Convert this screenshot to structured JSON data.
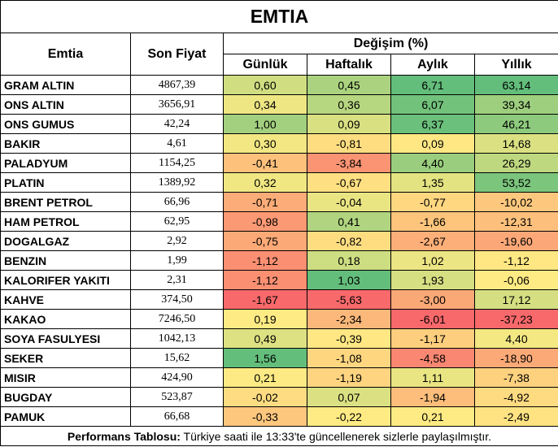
{
  "title": "EMTIA",
  "headers": {
    "commodity": "Emtia",
    "last_price": "Son Fiyat",
    "change_group": "Değişim (%)",
    "daily": "Günlük",
    "weekly": "Haftalık",
    "monthly": "Aylık",
    "yearly": "Yıllık"
  },
  "rows": [
    {
      "name": "GRAM ALTIN",
      "price": "4867,39",
      "daily": "0,60",
      "weekly": "0,45",
      "monthly": "6,71",
      "yearly": "63,14"
    },
    {
      "name": "ONS ALTIN",
      "price": "3656,91",
      "daily": "0,34",
      "weekly": "0,36",
      "monthly": "6,07",
      "yearly": "39,34"
    },
    {
      "name": "ONS GUMUS",
      "price": "42,24",
      "daily": "1,00",
      "weekly": "0,09",
      "monthly": "6,37",
      "yearly": "46,21"
    },
    {
      "name": "BAKIR",
      "price": "4,61",
      "daily": "0,30",
      "weekly": "-0,81",
      "monthly": "0,09",
      "yearly": "14,68"
    },
    {
      "name": "PALADYUM",
      "price": "1154,25",
      "daily": "-0,41",
      "weekly": "-3,84",
      "monthly": "4,40",
      "yearly": "26,29"
    },
    {
      "name": "PLATIN",
      "price": "1389,92",
      "daily": "0,32",
      "weekly": "-0,67",
      "monthly": "1,35",
      "yearly": "53,52"
    },
    {
      "name": "BRENT PETROL",
      "price": "66,96",
      "daily": "-0,71",
      "weekly": "-0,04",
      "monthly": "-0,77",
      "yearly": "-10,02"
    },
    {
      "name": "HAM PETROL",
      "price": "62,95",
      "daily": "-0,98",
      "weekly": "0,41",
      "monthly": "-1,66",
      "yearly": "-12,31"
    },
    {
      "name": "DOGALGAZ",
      "price": "2,92",
      "daily": "-0,75",
      "weekly": "-0,82",
      "monthly": "-2,67",
      "yearly": "-19,60"
    },
    {
      "name": "BENZIN",
      "price": "1,99",
      "daily": "-1,12",
      "weekly": "0,18",
      "monthly": "1,02",
      "yearly": "-1,12"
    },
    {
      "name": "KALORIFER YAKITI",
      "price": "2,31",
      "daily": "-1,12",
      "weekly": "1,03",
      "monthly": "1,93",
      "yearly": "-0,06"
    },
    {
      "name": "KAHVE",
      "price": "374,50",
      "daily": "-1,67",
      "weekly": "-5,63",
      "monthly": "-3,00",
      "yearly": "17,12"
    },
    {
      "name": "KAKAO",
      "price": "7246,50",
      "daily": "0,19",
      "weekly": "-2,34",
      "monthly": "-6,01",
      "yearly": "-37,23"
    },
    {
      "name": "SOYA FASULYESI",
      "price": "1042,13",
      "daily": "0,49",
      "weekly": "-0,39",
      "monthly": "-1,17",
      "yearly": "4,40"
    },
    {
      "name": "SEKER",
      "price": "15,62",
      "daily": "1,56",
      "weekly": "-1,08",
      "monthly": "-4,58",
      "yearly": "-18,90"
    },
    {
      "name": "MISIR",
      "price": "424,90",
      "daily": "0,21",
      "weekly": "-1,19",
      "monthly": "1,11",
      "yearly": "-7,38"
    },
    {
      "name": "BUGDAY",
      "price": "523,87",
      "daily": "-0,02",
      "weekly": "0,07",
      "monthly": "-1,94",
      "yearly": "-4,92"
    },
    {
      "name": "PAMUK",
      "price": "66,68",
      "daily": "-0,33",
      "weekly": "-0,22",
      "monthly": "0,21",
      "yearly": "-2,49"
    }
  ],
  "footer": {
    "label": "Performans Tablosu:",
    "text": " Türkiye saati ile 13:33'te güncellenerek sizlerle paylaşılmıştır."
  }
}
